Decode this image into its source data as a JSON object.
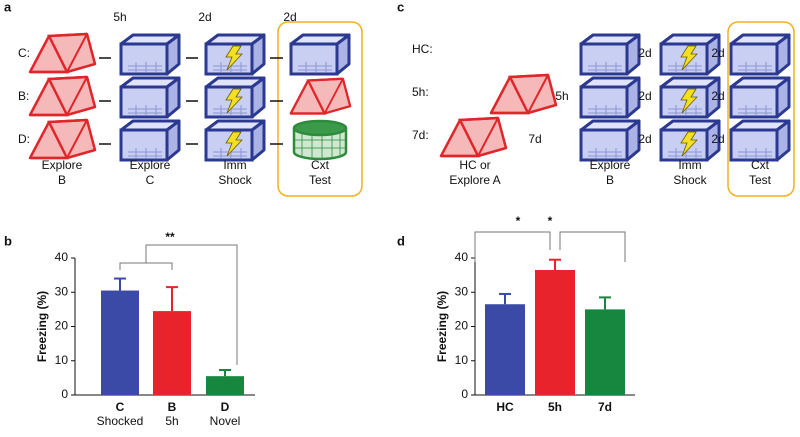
{
  "panel_a": {
    "label": "a",
    "intervals": [
      "5h",
      "2d",
      "2d"
    ],
    "rows": [
      "C:",
      "B:",
      "D:"
    ],
    "stages": [
      [
        "Explore",
        "B"
      ],
      [
        "Explore",
        "C"
      ],
      [
        "Imm",
        "Shock"
      ],
      [
        "Cxt",
        "Test"
      ]
    ]
  },
  "panel_c": {
    "label": "c",
    "rows": [
      "HC:",
      "5h:",
      "7d:"
    ],
    "delays": [
      "5h",
      "7d"
    ],
    "intervals": [
      [
        "2d",
        "2d"
      ],
      [
        "2d",
        "2d"
      ],
      [
        "2d",
        "2d"
      ]
    ],
    "stages": [
      [
        "HC or",
        "Explore A"
      ],
      [
        "Explore",
        "B"
      ],
      [
        "Imm",
        "Shock"
      ],
      [
        "Cxt",
        "Test"
      ]
    ]
  },
  "chart_data": [
    {
      "type": "bar",
      "panel_label": "b",
      "ylabel": "Freezing (%)",
      "categories": [
        "C",
        "B",
        "D"
      ],
      "category_sublabels": [
        "Shocked",
        "5h",
        "Novel"
      ],
      "values": [
        30.5,
        24.5,
        5.5
      ],
      "errors": [
        3.5,
        7,
        1.8
      ],
      "colors": [
        "#3a4aa6",
        "#e8232b",
        "#17873f"
      ],
      "ylim": [
        0,
        40
      ],
      "yticks": [
        0,
        10,
        20,
        30,
        40
      ],
      "annotations": [
        "**"
      ]
    },
    {
      "type": "bar",
      "panel_label": "d",
      "ylabel": "Freezing (%)",
      "categories": [
        "HC",
        "5h",
        "7d"
      ],
      "values": [
        26.5,
        36.5,
        25
      ],
      "errors": [
        3,
        3,
        3.5
      ],
      "colors": [
        "#3a4aa6",
        "#e8232b",
        "#17873f"
      ],
      "ylim": [
        0,
        40
      ],
      "yticks": [
        0,
        10,
        20,
        30,
        40
      ],
      "annotations": [
        "*",
        "*"
      ]
    }
  ]
}
